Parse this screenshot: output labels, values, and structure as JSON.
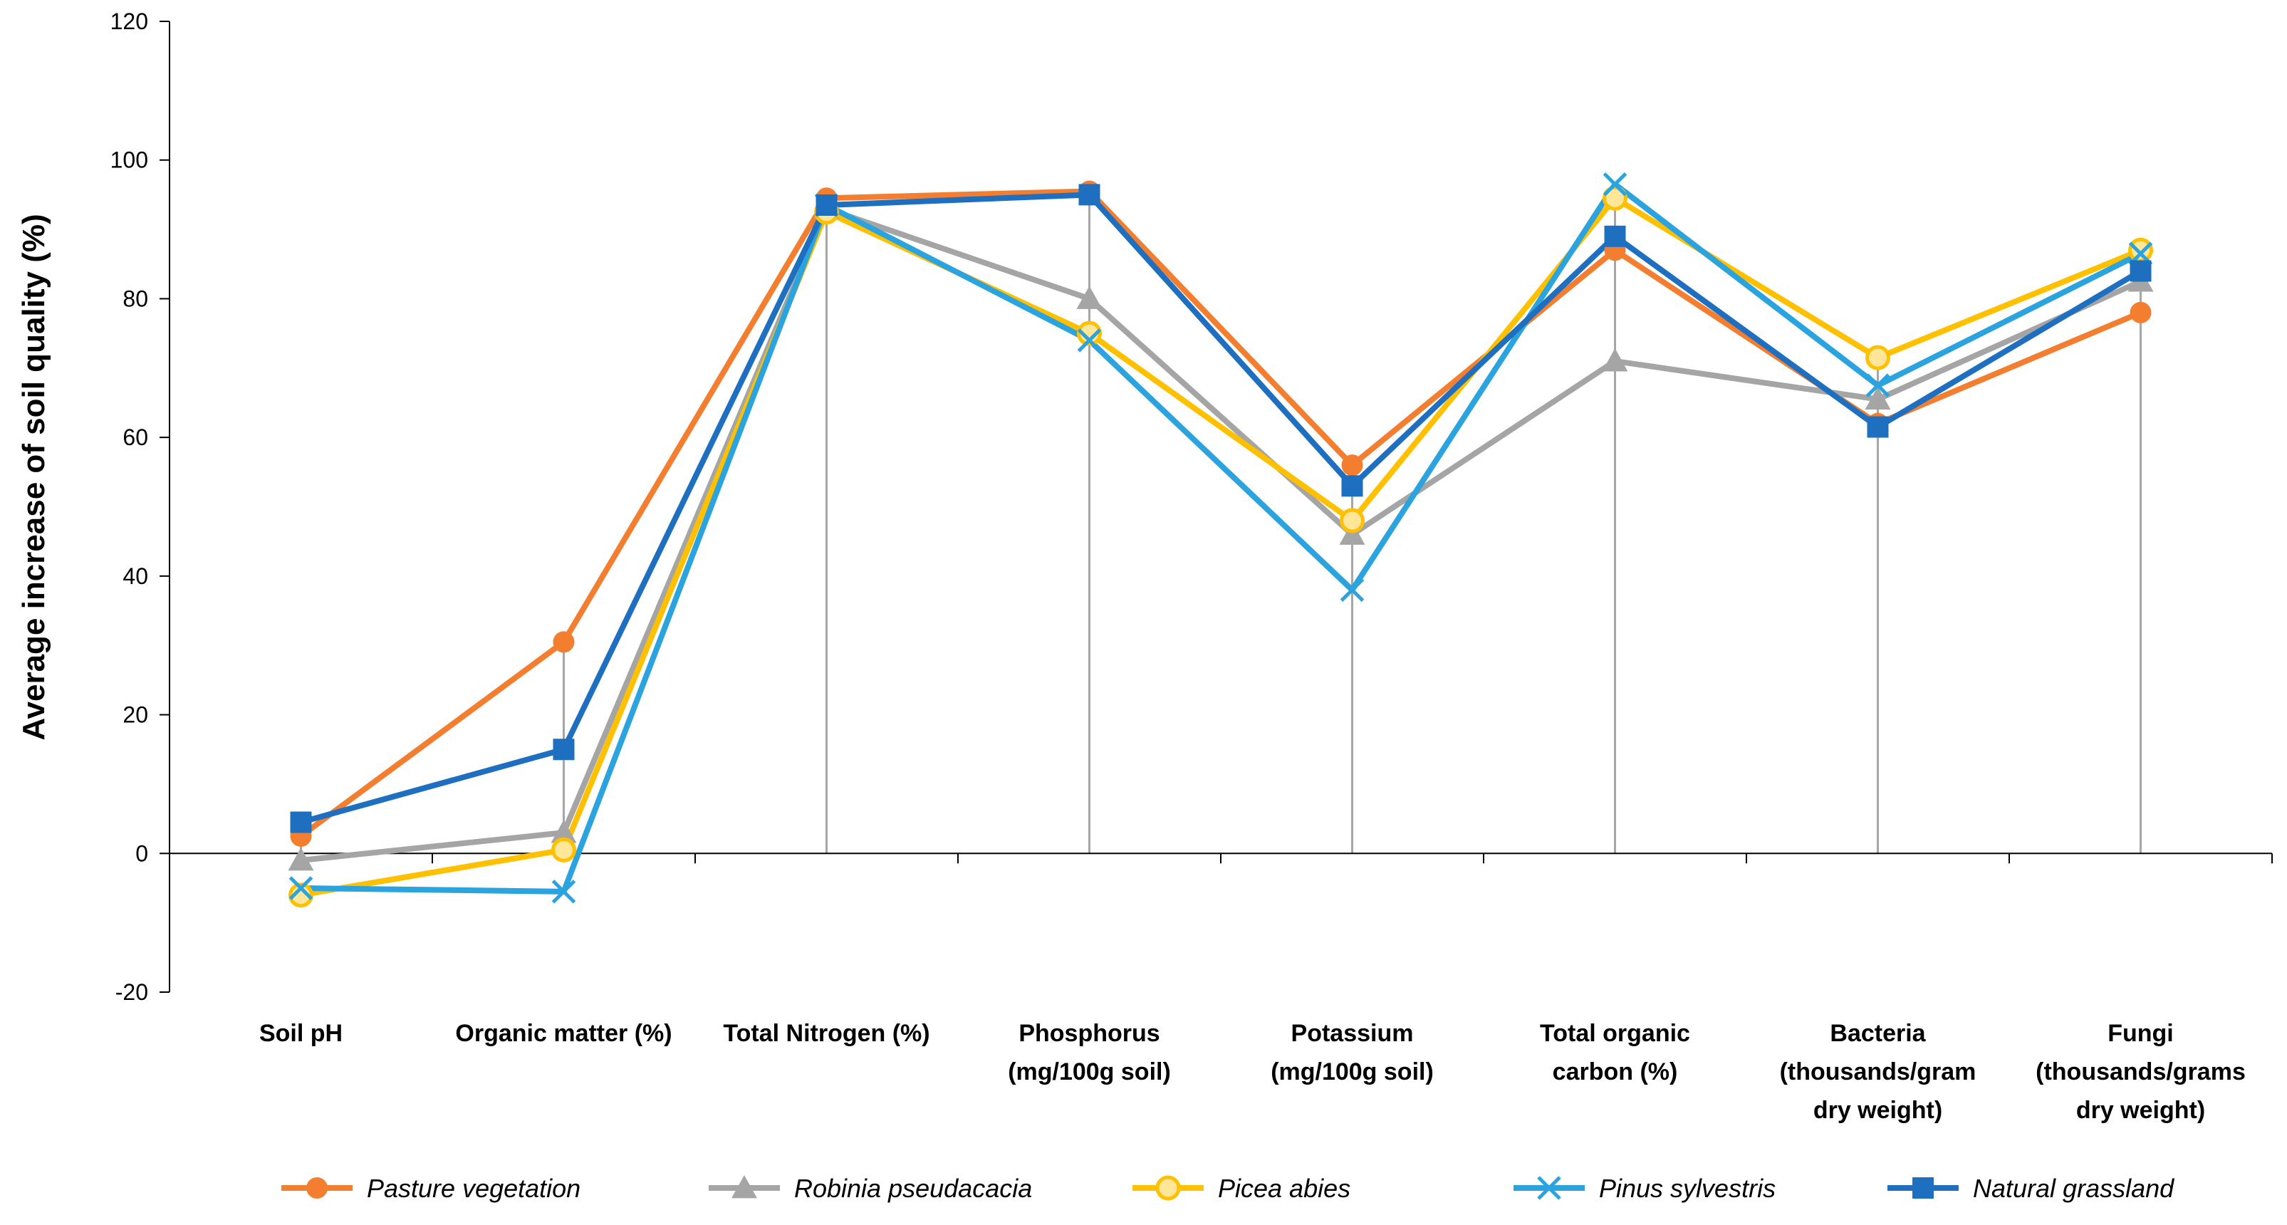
{
  "chart_data": {
    "type": "line",
    "title": "",
    "xlabel": "",
    "ylabel": "Average increase of soil  quality (%)",
    "ylim": [
      -20,
      120
    ],
    "yticks": [
      -20,
      0,
      20,
      40,
      60,
      80,
      100,
      120
    ],
    "ytick_labels": [
      "-20",
      "0",
      "20",
      "40",
      "60",
      "80",
      "100",
      "120"
    ],
    "categories": [
      [
        "Soil pH"
      ],
      [
        "Organic matter (%)"
      ],
      [
        "Total Nitrogen (%)"
      ],
      [
        "Phosphorus",
        "(mg/100g soil)"
      ],
      [
        "Potassium",
        "(mg/100g soil)"
      ],
      [
        "Total organic",
        "carbon (%)"
      ],
      [
        "Bacteria",
        "(thousands/gram",
        "dry weight)"
      ],
      [
        "Fungi",
        "(thousands/grams",
        "dry weight)"
      ]
    ],
    "drop_lines": true,
    "legend_position": "bottom",
    "series": [
      {
        "name": "Pasture vegetation",
        "color": "#F47E30",
        "marker": "circle",
        "values": [
          2.5,
          30.5,
          94.5,
          95.5,
          56,
          87,
          62,
          78
        ]
      },
      {
        "name": "Robinia pseudacacia",
        "color": "#A5A5A5",
        "marker": "triangle",
        "values": [
          -1,
          3,
          93,
          80,
          46,
          71,
          65.5,
          82.5
        ]
      },
      {
        "name": "Picea abies",
        "color": "#FFC000",
        "marker": "circle-open",
        "values": [
          -6,
          0.5,
          92.5,
          75,
          48,
          94.5,
          71.5,
          87
        ]
      },
      {
        "name": "Pinus sylvestris",
        "color": "#2AA3DE",
        "marker": "x",
        "values": [
          -5,
          -5.5,
          93.5,
          74,
          38,
          96.5,
          67.5,
          86.5
        ]
      },
      {
        "name": "Natural grassland",
        "color": "#1F6FC1",
        "marker": "square",
        "values": [
          4.5,
          15,
          93.5,
          95,
          53,
          89,
          61.5,
          84
        ]
      }
    ]
  }
}
